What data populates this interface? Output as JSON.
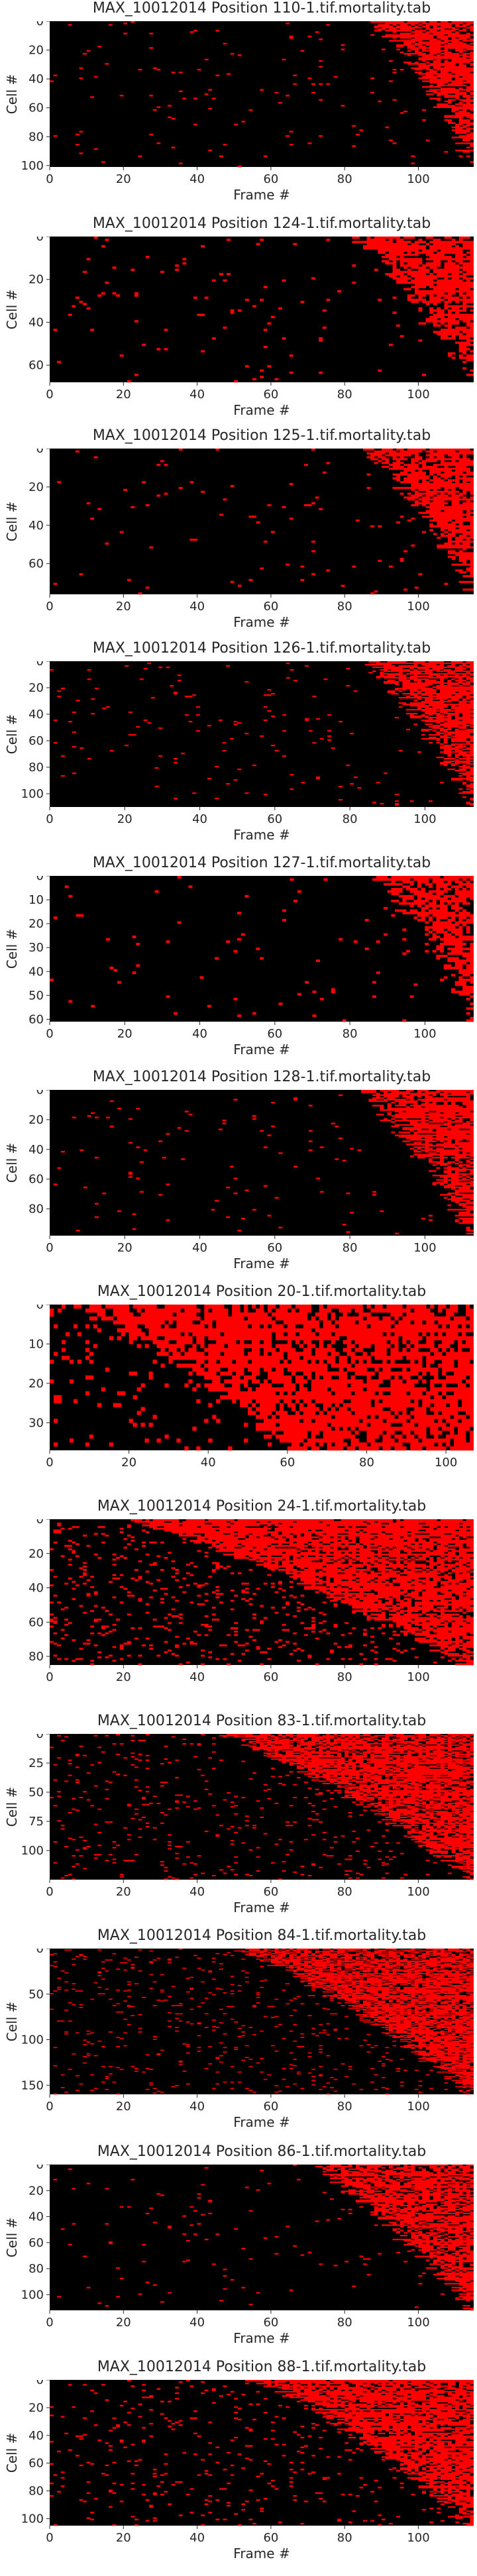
{
  "chart_data": [
    {
      "type": "heatmap",
      "title": "MAX_10012014 Position 110-1.tif.mortality.tab",
      "xlabel": "Frame #",
      "ylabel": "Cell #",
      "n_frames": 115,
      "n_cells": 101,
      "xticks": [
        0,
        20,
        40,
        60,
        80,
        100
      ],
      "yticks": [
        0,
        20,
        40,
        60,
        80,
        100
      ],
      "colormap": [
        "#000000",
        "#ff0000"
      ],
      "grid": false,
      "onset_frame": [
        88,
        115
      ],
      "noise": "low"
    },
    {
      "type": "heatmap",
      "title": "MAX_10012014 Position 124-1.tif.mortality.tab",
      "xlabel": "Frame #",
      "ylabel": "Cell #",
      "n_frames": 115,
      "n_cells": 68,
      "xticks": [
        0,
        20,
        40,
        60,
        80,
        100
      ],
      "yticks": [
        0,
        20,
        40,
        60
      ],
      "colormap": [
        "#000000",
        "#ff0000"
      ],
      "grid": false,
      "onset_frame": [
        82,
        115
      ],
      "noise": "low"
    },
    {
      "type": "heatmap",
      "title": "MAX_10012014 Position 125-1.tif.mortality.tab",
      "xlabel": "Frame #",
      "ylabel": "Cell #",
      "n_frames": 115,
      "n_cells": 76,
      "xticks": [
        0,
        20,
        40,
        60,
        80,
        100
      ],
      "yticks": [
        0,
        20,
        40,
        60
      ],
      "colormap": [
        "#000000",
        "#ff0000"
      ],
      "grid": false,
      "onset_frame": [
        85,
        115
      ],
      "noise": "low"
    },
    {
      "type": "heatmap",
      "title": "MAX_10012014 Position 126-1.tif.mortality.tab",
      "xlabel": "Frame #",
      "ylabel": "Cell #",
      "n_frames": 113,
      "n_cells": 110,
      "xticks": [
        0,
        20,
        40,
        60,
        80,
        100
      ],
      "yticks": [
        0,
        20,
        40,
        60,
        80,
        100
      ],
      "colormap": [
        "#000000",
        "#ff0000"
      ],
      "grid": false,
      "onset_frame": [
        84,
        113
      ],
      "noise": "low"
    },
    {
      "type": "heatmap",
      "title": "MAX_10012014 Position 127-1.tif.mortality.tab",
      "xlabel": "Frame #",
      "ylabel": "Cell #",
      "n_frames": 113,
      "n_cells": 61,
      "xticks": [
        0,
        20,
        40,
        60,
        80,
        100
      ],
      "yticks": [
        0,
        10,
        20,
        30,
        40,
        50,
        60
      ],
      "colormap": [
        "#000000",
        "#ff0000"
      ],
      "grid": false,
      "onset_frame": [
        86,
        113
      ],
      "noise": "low"
    },
    {
      "type": "heatmap",
      "title": "MAX_10012014 Position 128-1.tif.mortality.tab",
      "xlabel": "Frame #",
      "ylabel": "Cell #",
      "n_frames": 113,
      "n_cells": 98,
      "xticks": [
        0,
        20,
        40,
        60,
        80,
        100
      ],
      "yticks": [
        0,
        20,
        40,
        60,
        80
      ],
      "colormap": [
        "#000000",
        "#ff0000"
      ],
      "grid": false,
      "onset_frame": [
        82,
        113
      ],
      "noise": "low"
    },
    {
      "type": "heatmap",
      "title": "MAX_10012014 Position 20-1.tif.mortality.tab",
      "xlabel": "",
      "ylabel": "",
      "n_frames": 107,
      "n_cells": 37,
      "xticks": [
        0,
        20,
        40,
        60,
        80,
        100
      ],
      "yticks": [
        0,
        10,
        20,
        30
      ],
      "colormap": [
        "#000000",
        "#ff0000"
      ],
      "grid": false,
      "onset_frame": [
        5,
        60
      ],
      "noise": "high"
    },
    {
      "type": "heatmap",
      "title": "MAX_10012014 Position 24-1.tif.mortality.tab",
      "xlabel": "",
      "ylabel": "",
      "n_frames": 115,
      "n_cells": 85,
      "xticks": [
        0,
        20,
        40,
        60,
        80,
        100
      ],
      "yticks": [
        0,
        20,
        40,
        60,
        80
      ],
      "colormap": [
        "#000000",
        "#ff0000"
      ],
      "grid": false,
      "onset_frame": [
        20,
        112
      ],
      "noise": "high"
    },
    {
      "type": "heatmap",
      "title": "MAX_10012014 Position 83-1.tif.mortality.tab",
      "xlabel": "Frame #",
      "ylabel": "Cell #",
      "n_frames": 115,
      "n_cells": 125,
      "xticks": [
        0,
        20,
        40,
        60,
        80,
        100
      ],
      "yticks": [
        0,
        25,
        50,
        75,
        100
      ],
      "colormap": [
        "#000000",
        "#ff0000"
      ],
      "grid": false,
      "onset_frame": [
        45,
        115
      ],
      "noise": "medium"
    },
    {
      "type": "heatmap",
      "title": "MAX_10012014 Position 84-1.tif.mortality.tab",
      "xlabel": "Frame #",
      "ylabel": "Cell #",
      "n_frames": 115,
      "n_cells": 160,
      "xticks": [
        0,
        20,
        40,
        60,
        80,
        100
      ],
      "yticks": [
        0,
        50,
        100,
        150
      ],
      "colormap": [
        "#000000",
        "#ff0000"
      ],
      "grid": false,
      "onset_frame": [
        50,
        115
      ],
      "noise": "medium"
    },
    {
      "type": "heatmap",
      "title": "MAX_10012014 Position 86-1.tif.mortality.tab",
      "xlabel": "Frame #",
      "ylabel": "Cell #",
      "n_frames": 115,
      "n_cells": 112,
      "xticks": [
        0,
        20,
        40,
        60,
        80,
        100
      ],
      "yticks": [
        0,
        20,
        40,
        60,
        80,
        100
      ],
      "colormap": [
        "#000000",
        "#ff0000"
      ],
      "grid": false,
      "onset_frame": [
        70,
        115
      ],
      "noise": "low"
    },
    {
      "type": "heatmap",
      "title": "MAX_10012014 Position 88-1.tif.mortality.tab",
      "xlabel": "Frame #",
      "ylabel": "Cell #",
      "n_frames": 115,
      "n_cells": 105,
      "xticks": [
        0,
        20,
        40,
        60,
        80,
        100
      ],
      "yticks": [
        0,
        20,
        40,
        60,
        80,
        100
      ],
      "colormap": [
        "#000000",
        "#ff0000"
      ],
      "grid": false,
      "onset_frame": [
        55,
        115
      ],
      "noise": "medium"
    }
  ]
}
